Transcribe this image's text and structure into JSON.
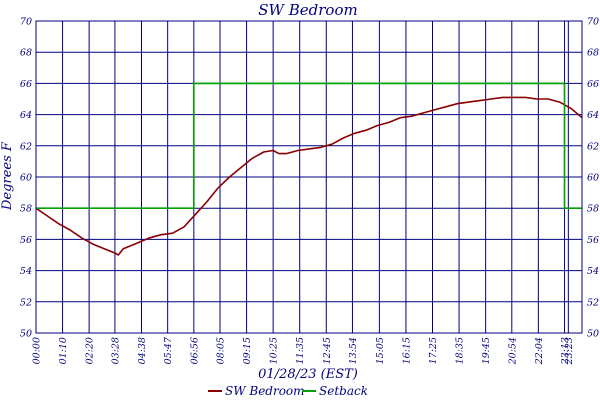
{
  "chart_data": {
    "type": "line",
    "title": "SW Bedroom",
    "xlabel": "01/28/23 (EST)",
    "ylabel": "Degrees F",
    "ylim": [
      50,
      70
    ],
    "yticks": [
      50,
      52,
      54,
      56,
      58,
      60,
      62,
      64,
      66,
      68,
      70
    ],
    "xlim_minutes": [
      0,
      1439
    ],
    "xticks": [
      "00:00",
      "01:10",
      "02:20",
      "03:28",
      "04:38",
      "05:47",
      "06:56",
      "08:05",
      "09:15",
      "10:25",
      "11:35",
      "12:45",
      "13:54",
      "15:05",
      "16:15",
      "17:25",
      "18:35",
      "19:45",
      "20:54",
      "22:04",
      "23:13",
      "23:23"
    ],
    "grid": true,
    "legend_position": "bottom",
    "series": [
      {
        "name": "SW Bedroom",
        "color": "#8b0000",
        "x": [
          "00:00",
          "00:30",
          "01:00",
          "01:30",
          "02:00",
          "02:30",
          "03:00",
          "03:30",
          "03:37",
          "03:50",
          "04:20",
          "05:00",
          "05:30",
          "06:00",
          "06:30",
          "07:00",
          "07:30",
          "08:00",
          "08:30",
          "09:00",
          "09:30",
          "10:00",
          "10:25",
          "10:40",
          "11:00",
          "11:30",
          "12:00",
          "12:30",
          "13:00",
          "13:30",
          "14:00",
          "14:30",
          "15:00",
          "15:30",
          "16:00",
          "16:30",
          "17:00",
          "17:30",
          "18:00",
          "18:30",
          "19:00",
          "19:30",
          "20:00",
          "20:30",
          "21:00",
          "21:30",
          "22:00",
          "22:30",
          "23:00",
          "23:30",
          "23:59"
        ],
        "values": [
          58.0,
          57.5,
          57.0,
          56.6,
          56.1,
          55.7,
          55.4,
          55.1,
          55.0,
          55.4,
          55.7,
          56.1,
          56.3,
          56.4,
          56.8,
          57.6,
          58.4,
          59.3,
          60.0,
          60.6,
          61.2,
          61.6,
          61.7,
          61.5,
          61.5,
          61.7,
          61.8,
          61.9,
          62.1,
          62.5,
          62.8,
          63.0,
          63.3,
          63.5,
          63.8,
          63.9,
          64.1,
          64.3,
          64.5,
          64.7,
          64.8,
          64.9,
          65.0,
          65.1,
          65.1,
          65.1,
          65.0,
          65.0,
          64.8,
          64.4,
          63.8
        ]
      },
      {
        "name": "Setback",
        "color": "#00a000",
        "step": true,
        "x": [
          "00:00",
          "06:56",
          "06:56",
          "23:13",
          "23:13",
          "23:59"
        ],
        "values": [
          58,
          58,
          66,
          66,
          58,
          58
        ]
      }
    ]
  }
}
